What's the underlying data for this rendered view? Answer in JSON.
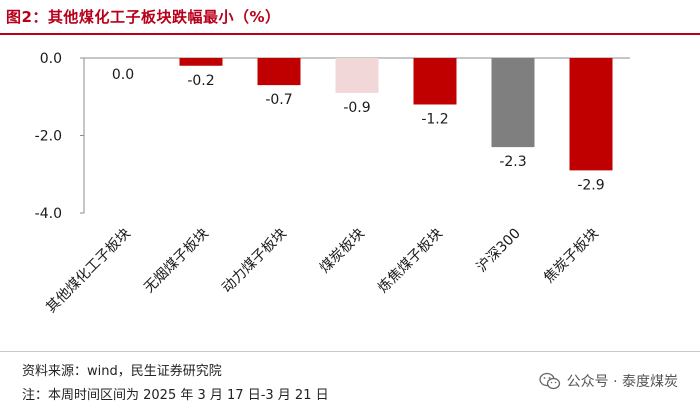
{
  "title": "图2：其他煤化工子板块跌幅最小（%）",
  "footer": {
    "source": "资料来源：wind，民生证券研究院",
    "note": "注：本周时间区间为 2025 年 3 月 17 日-3 月 21 日"
  },
  "watermark": {
    "text": "公众号 · 泰度煤炭",
    "icon": "wechat-icon"
  },
  "chart_data": {
    "type": "bar",
    "title": "",
    "xlabel": "",
    "ylabel": "",
    "ylim": [
      -4.0,
      0.0
    ],
    "yticks": [
      0.0,
      -2.0,
      -4.0
    ],
    "ytick_labels": [
      "0.0",
      "-2.0",
      "-4.0"
    ],
    "grid": false,
    "categories": [
      "其他煤化工子板块",
      "无烟煤子板块",
      "动力煤子板块",
      "煤炭板块",
      "炼焦煤子板块",
      "沪深300",
      "焦炭子板块"
    ],
    "values": [
      0.0,
      -0.2,
      -0.7,
      -0.9,
      -1.2,
      -2.3,
      -2.9
    ],
    "data_labels": [
      "0.0",
      "-0.2",
      "-0.7",
      "-0.9",
      "-1.2",
      "-2.3",
      "-2.9"
    ],
    "bar_colors": [
      "#c00000",
      "#c00000",
      "#c00000",
      "#f2d7d8",
      "#c00000",
      "#7f7f7f",
      "#c00000"
    ]
  }
}
